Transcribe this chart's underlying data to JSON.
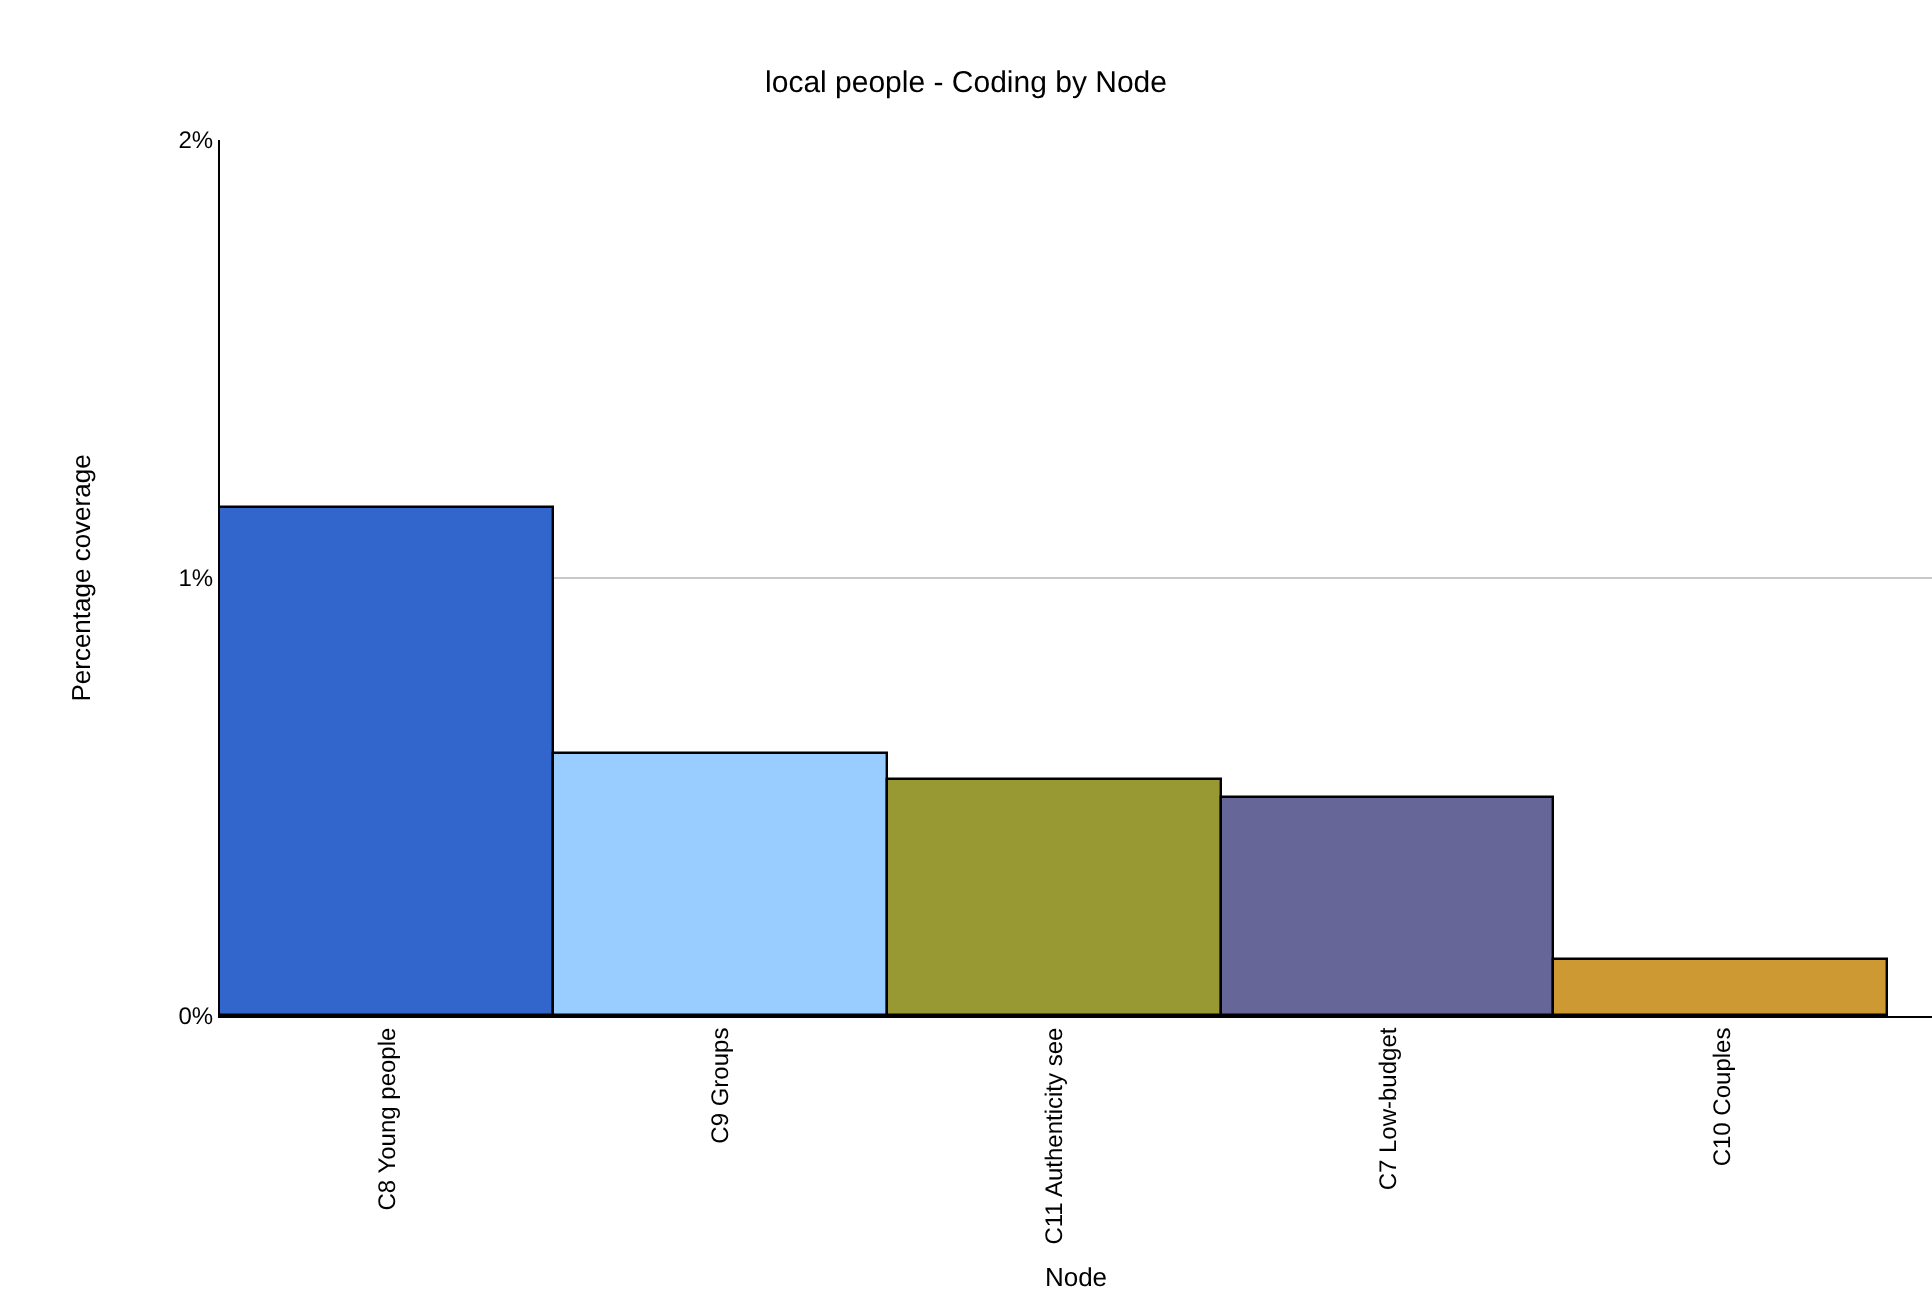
{
  "chart_data": {
    "type": "bar",
    "title": "local people - Coding by Node",
    "xlabel": "Node",
    "ylabel": "Percentage coverage",
    "categories": [
      "C8 Young people",
      "C9 Groups",
      "C11 Authenticity see",
      "C7 Low-budget",
      "C10 Couples"
    ],
    "values": [
      1.16,
      0.6,
      0.54,
      0.5,
      0.13
    ],
    "colors": [
      "#3366cc",
      "#99ccff",
      "#999933",
      "#666699",
      "#cc9933"
    ],
    "ylim": [
      0,
      2
    ],
    "yticks": [
      {
        "value": 0,
        "label": "0%"
      },
      {
        "value": 1,
        "label": "1%"
      },
      {
        "value": 2,
        "label": "2%"
      }
    ],
    "grid": "y"
  }
}
